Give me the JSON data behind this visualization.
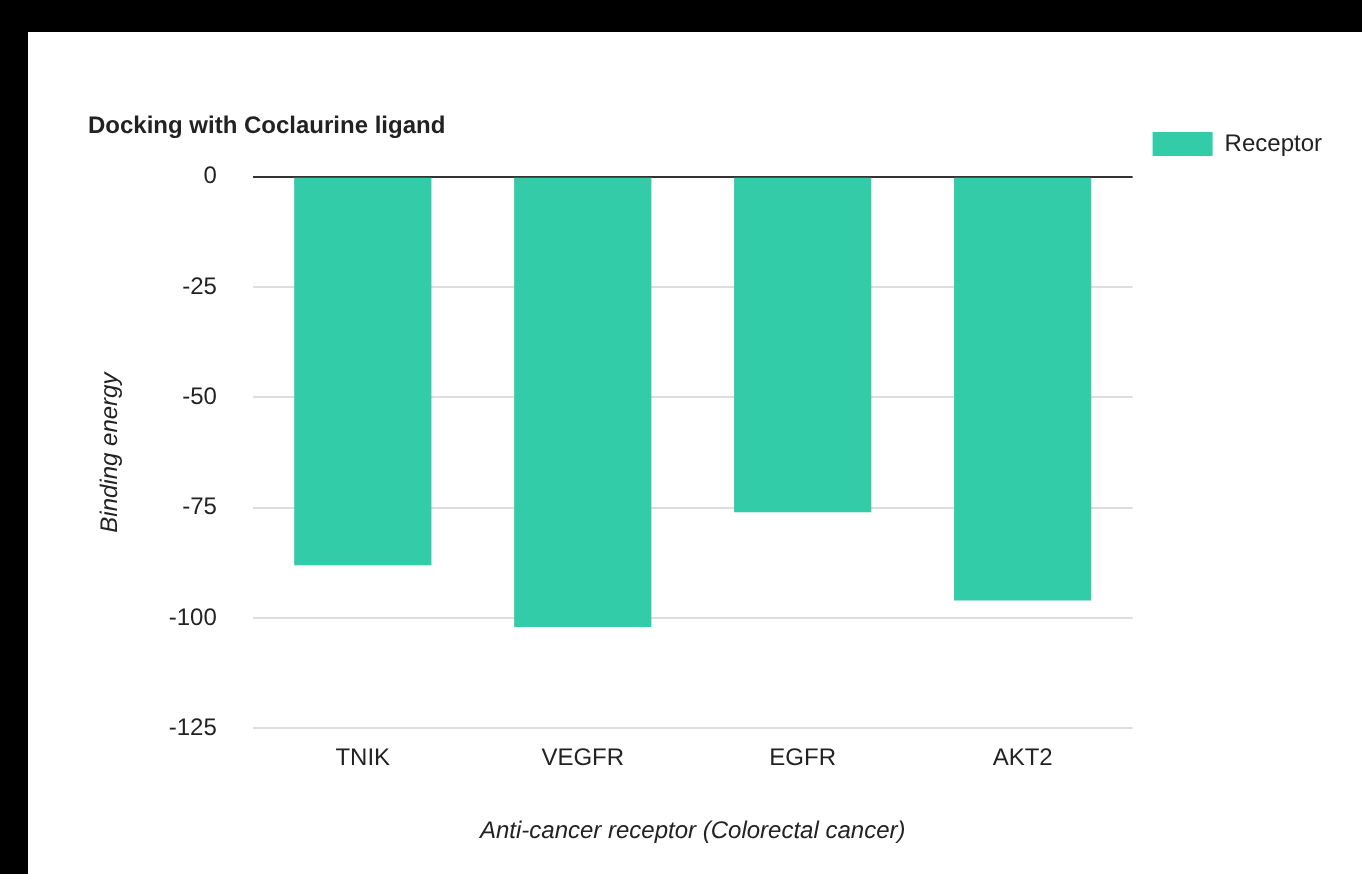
{
  "chart_data": {
    "type": "bar",
    "title": "Docking with Coclaurine ligand",
    "xlabel": "Anti-cancer receptor (Colorectal cancer)",
    "ylabel": "Binding energy",
    "categories": [
      "TNIK",
      "VEGFR",
      "EGFR",
      "AKT2"
    ],
    "series": [
      {
        "name": "Receptor",
        "color": "#33cca9",
        "values": [
          -88,
          -102,
          -76,
          -96
        ]
      }
    ],
    "ylim": [
      -125,
      0
    ],
    "yticks": [
      0,
      -25,
      -50,
      -75,
      -100,
      -125
    ],
    "grid": "y",
    "legend": "right"
  }
}
